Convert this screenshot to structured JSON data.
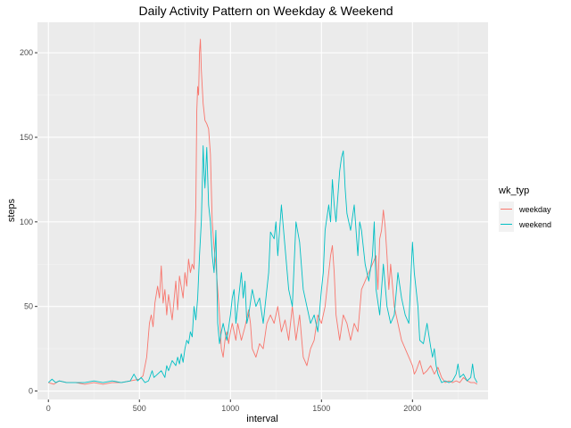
{
  "chart_data": {
    "type": "line",
    "title": "Daily Activity Pattern on Weekday & Weekend",
    "xlabel": "interval",
    "ylabel": "steps",
    "xlim": [
      -60,
      2415
    ],
    "ylim": [
      -5,
      218
    ],
    "x_ticks": [
      0,
      500,
      1000,
      1500,
      2000
    ],
    "y_ticks": [
      0,
      50,
      100,
      150,
      200
    ],
    "grid": true,
    "legend_position": "right",
    "legend_title": "wk_typ",
    "background": "#EBEBEB",
    "series": [
      {
        "name": "weekday",
        "color": "#F8766D",
        "points": [
          [
            0,
            5
          ],
          [
            30,
            4
          ],
          [
            60,
            6
          ],
          [
            100,
            5
          ],
          [
            150,
            5
          ],
          [
            200,
            4
          ],
          [
            250,
            5
          ],
          [
            300,
            4
          ],
          [
            350,
            5
          ],
          [
            400,
            5
          ],
          [
            450,
            6
          ],
          [
            500,
            7
          ],
          [
            520,
            9
          ],
          [
            540,
            20
          ],
          [
            555,
            40
          ],
          [
            565,
            45
          ],
          [
            575,
            38
          ],
          [
            585,
            52
          ],
          [
            600,
            62
          ],
          [
            610,
            55
          ],
          [
            620,
            74
          ],
          [
            630,
            52
          ],
          [
            640,
            60
          ],
          [
            650,
            45
          ],
          [
            660,
            57
          ],
          [
            680,
            42
          ],
          [
            700,
            65
          ],
          [
            710,
            48
          ],
          [
            720,
            68
          ],
          [
            740,
            55
          ],
          [
            750,
            70
          ],
          [
            760,
            62
          ],
          [
            770,
            78
          ],
          [
            780,
            70
          ],
          [
            790,
            75
          ],
          [
            800,
            72
          ],
          [
            810,
            110
          ],
          [
            815,
            165
          ],
          [
            820,
            180
          ],
          [
            825,
            175
          ],
          [
            830,
            200
          ],
          [
            835,
            208
          ],
          [
            840,
            190
          ],
          [
            850,
            170
          ],
          [
            860,
            160
          ],
          [
            870,
            158
          ],
          [
            880,
            155
          ],
          [
            890,
            140
          ],
          [
            900,
            100
          ],
          [
            910,
            85
          ],
          [
            920,
            75
          ],
          [
            930,
            60
          ],
          [
            940,
            45
          ],
          [
            950,
            25
          ],
          [
            960,
            20
          ],
          [
            970,
            30
          ],
          [
            980,
            35
          ],
          [
            990,
            28
          ],
          [
            1000,
            35
          ],
          [
            1010,
            40
          ],
          [
            1020,
            35
          ],
          [
            1030,
            30
          ],
          [
            1040,
            40
          ],
          [
            1050,
            35
          ],
          [
            1060,
            30
          ],
          [
            1080,
            38
          ],
          [
            1100,
            48
          ],
          [
            1110,
            40
          ],
          [
            1120,
            25
          ],
          [
            1140,
            20
          ],
          [
            1160,
            28
          ],
          [
            1180,
            25
          ],
          [
            1200,
            40
          ],
          [
            1220,
            45
          ],
          [
            1240,
            40
          ],
          [
            1260,
            50
          ],
          [
            1280,
            35
          ],
          [
            1300,
            42
          ],
          [
            1320,
            30
          ],
          [
            1340,
            50
          ],
          [
            1360,
            30
          ],
          [
            1380,
            45
          ],
          [
            1400,
            20
          ],
          [
            1420,
            15
          ],
          [
            1440,
            25
          ],
          [
            1460,
            30
          ],
          [
            1480,
            45
          ],
          [
            1500,
            40
          ],
          [
            1520,
            50
          ],
          [
            1540,
            70
          ],
          [
            1550,
            80
          ],
          [
            1560,
            86
          ],
          [
            1570,
            70
          ],
          [
            1580,
            45
          ],
          [
            1600,
            30
          ],
          [
            1620,
            45
          ],
          [
            1640,
            40
          ],
          [
            1660,
            30
          ],
          [
            1680,
            40
          ],
          [
            1700,
            35
          ],
          [
            1720,
            60
          ],
          [
            1740,
            65
          ],
          [
            1760,
            70
          ],
          [
            1780,
            75
          ],
          [
            1800,
            80
          ],
          [
            1810,
            60
          ],
          [
            1820,
            90
          ],
          [
            1830,
            95
          ],
          [
            1840,
            107
          ],
          [
            1850,
            97
          ],
          [
            1860,
            80
          ],
          [
            1870,
            60
          ],
          [
            1880,
            75
          ],
          [
            1900,
            50
          ],
          [
            1920,
            40
          ],
          [
            1940,
            30
          ],
          [
            1960,
            25
          ],
          [
            1980,
            20
          ],
          [
            2000,
            15
          ],
          [
            2010,
            10
          ],
          [
            2020,
            12
          ],
          [
            2040,
            18
          ],
          [
            2060,
            10
          ],
          [
            2080,
            12
          ],
          [
            2100,
            15
          ],
          [
            2120,
            10
          ],
          [
            2140,
            14
          ],
          [
            2160,
            8
          ],
          [
            2180,
            5
          ],
          [
            2200,
            6
          ],
          [
            2220,
            5
          ],
          [
            2240,
            6
          ],
          [
            2260,
            5
          ],
          [
            2280,
            8
          ],
          [
            2300,
            6
          ],
          [
            2320,
            5
          ],
          [
            2340,
            5
          ],
          [
            2355,
            4
          ]
        ]
      },
      {
        "name": "weekend",
        "color": "#00BFC4",
        "points": [
          [
            0,
            5
          ],
          [
            20,
            7
          ],
          [
            40,
            5
          ],
          [
            60,
            6
          ],
          [
            100,
            5
          ],
          [
            150,
            5
          ],
          [
            200,
            5
          ],
          [
            250,
            6
          ],
          [
            300,
            5
          ],
          [
            350,
            6
          ],
          [
            400,
            5
          ],
          [
            450,
            6
          ],
          [
            470,
            10
          ],
          [
            490,
            6
          ],
          [
            510,
            8
          ],
          [
            530,
            5
          ],
          [
            550,
            6
          ],
          [
            570,
            12
          ],
          [
            580,
            8
          ],
          [
            600,
            10
          ],
          [
            620,
            12
          ],
          [
            640,
            8
          ],
          [
            650,
            15
          ],
          [
            660,
            12
          ],
          [
            680,
            18
          ],
          [
            700,
            15
          ],
          [
            710,
            20
          ],
          [
            720,
            16
          ],
          [
            730,
            22
          ],
          [
            740,
            17
          ],
          [
            750,
            25
          ],
          [
            760,
            30
          ],
          [
            770,
            28
          ],
          [
            780,
            35
          ],
          [
            790,
            32
          ],
          [
            800,
            50
          ],
          [
            810,
            42
          ],
          [
            820,
            55
          ],
          [
            830,
            80
          ],
          [
            840,
            100
          ],
          [
            845,
            120
          ],
          [
            850,
            145
          ],
          [
            855,
            130
          ],
          [
            860,
            120
          ],
          [
            870,
            144
          ],
          [
            880,
            110
          ],
          [
            890,
            100
          ],
          [
            900,
            80
          ],
          [
            910,
            70
          ],
          [
            920,
            95
          ],
          [
            930,
            40
          ],
          [
            940,
            28
          ],
          [
            950,
            35
          ],
          [
            960,
            40
          ],
          [
            980,
            30
          ],
          [
            1000,
            45
          ],
          [
            1010,
            55
          ],
          [
            1020,
            60
          ],
          [
            1030,
            40
          ],
          [
            1040,
            50
          ],
          [
            1060,
            70
          ],
          [
            1070,
            55
          ],
          [
            1080,
            65
          ],
          [
            1090,
            40
          ],
          [
            1100,
            45
          ],
          [
            1120,
            60
          ],
          [
            1140,
            50
          ],
          [
            1160,
            55
          ],
          [
            1180,
            40
          ],
          [
            1200,
            60
          ],
          [
            1210,
            70
          ],
          [
            1220,
            94
          ],
          [
            1240,
            90
          ],
          [
            1250,
            100
          ],
          [
            1260,
            80
          ],
          [
            1280,
            110
          ],
          [
            1300,
            85
          ],
          [
            1320,
            60
          ],
          [
            1340,
            50
          ],
          [
            1360,
            100
          ],
          [
            1380,
            88
          ],
          [
            1400,
            60
          ],
          [
            1420,
            50
          ],
          [
            1440,
            40
          ],
          [
            1460,
            45
          ],
          [
            1480,
            35
          ],
          [
            1500,
            60
          ],
          [
            1510,
            70
          ],
          [
            1520,
            95
          ],
          [
            1540,
            110
          ],
          [
            1550,
            100
          ],
          [
            1560,
            125
          ],
          [
            1570,
            110
          ],
          [
            1580,
            100
          ],
          [
            1590,
            115
          ],
          [
            1600,
            130
          ],
          [
            1610,
            138
          ],
          [
            1620,
            142
          ],
          [
            1630,
            120
          ],
          [
            1640,
            105
          ],
          [
            1660,
            95
          ],
          [
            1680,
            110
          ],
          [
            1700,
            80
          ],
          [
            1710,
            100
          ],
          [
            1720,
            95
          ],
          [
            1740,
            75
          ],
          [
            1760,
            65
          ],
          [
            1780,
            80
          ],
          [
            1790,
            100
          ],
          [
            1800,
            60
          ],
          [
            1820,
            45
          ],
          [
            1840,
            75
          ],
          [
            1860,
            50
          ],
          [
            1880,
            40
          ],
          [
            1900,
            45
          ],
          [
            1920,
            70
          ],
          [
            1940,
            55
          ],
          [
            1960,
            45
          ],
          [
            1980,
            40
          ],
          [
            2000,
            88
          ],
          [
            2010,
            70
          ],
          [
            2020,
            60
          ],
          [
            2030,
            50
          ],
          [
            2040,
            30
          ],
          [
            2060,
            28
          ],
          [
            2080,
            40
          ],
          [
            2100,
            26
          ],
          [
            2110,
            20
          ],
          [
            2120,
            25
          ],
          [
            2130,
            15
          ],
          [
            2140,
            10
          ],
          [
            2160,
            5
          ],
          [
            2180,
            6
          ],
          [
            2200,
            5
          ],
          [
            2220,
            6
          ],
          [
            2240,
            10
          ],
          [
            2250,
            16
          ],
          [
            2260,
            8
          ],
          [
            2280,
            10
          ],
          [
            2300,
            6
          ],
          [
            2320,
            8
          ],
          [
            2330,
            16
          ],
          [
            2340,
            8
          ],
          [
            2355,
            5
          ]
        ]
      }
    ]
  }
}
